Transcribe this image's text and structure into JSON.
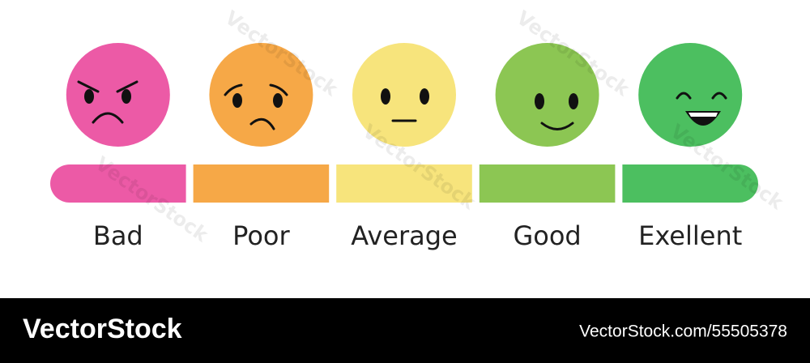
{
  "scale": {
    "items": [
      {
        "label": "Bad",
        "color": "#ec5aa6"
      },
      {
        "label": "Poor",
        "color": "#f6a847"
      },
      {
        "label": "Average",
        "color": "#f7e47c"
      },
      {
        "label": "Good",
        "color": "#8cc653"
      },
      {
        "label": "Exellent",
        "color": "#4cbf60"
      }
    ]
  },
  "watermark": "VectorStock",
  "footer": {
    "brand": "VectorStock",
    "id": "VectorStock.com/55505378"
  }
}
